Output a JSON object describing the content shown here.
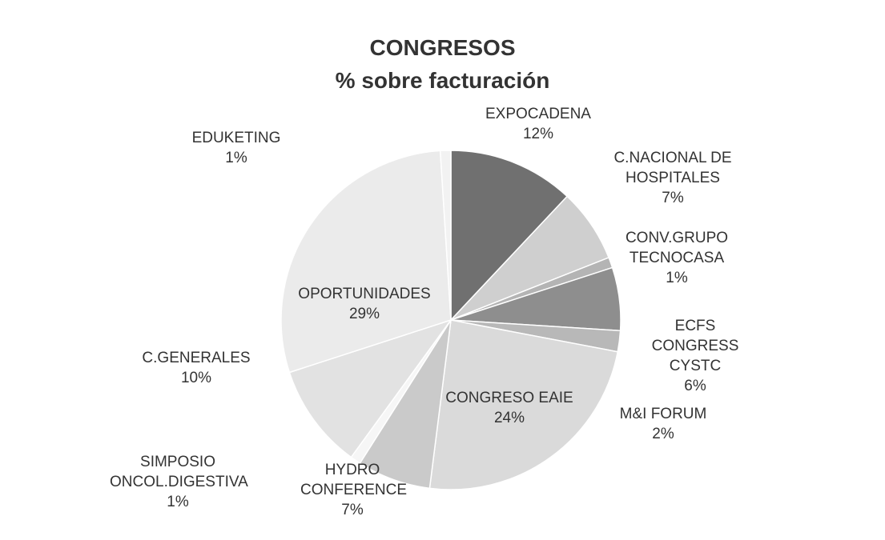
{
  "chart_data": {
    "type": "pie",
    "title": "CONGRESOS",
    "subtitle": "% sobre facturación",
    "categories": [
      "EXPOCADENA",
      "C.NACIONAL DE HOSPITALES",
      "CONV.GRUPO TECNOCASA",
      "ECFS CONGRESS CYSTC",
      "M&I FORUM",
      "CONGRESO EAIE",
      "HYDRO CONFERENCE",
      "SIMPOSIO ONCOL.DIGESTIVA",
      "C.GENERALES",
      "OPORTUNIDADES",
      "EDUKETING"
    ],
    "values": [
      12,
      7,
      1,
      6,
      2,
      24,
      7,
      1,
      10,
      29,
      1
    ],
    "value_labels": [
      "12%",
      "7%",
      "1%",
      "6%",
      "2%",
      "24%",
      "7%",
      "1%",
      "10%",
      "29%",
      "1%"
    ],
    "colors": [
      "#707070",
      "#cfcfcf",
      "#b4b4b4",
      "#8e8e8e",
      "#b8b8b8",
      "#dadada",
      "#cacaca",
      "#f6f6f6",
      "#e2e2e2",
      "#ebebeb",
      "#f2f2f2"
    ]
  }
}
